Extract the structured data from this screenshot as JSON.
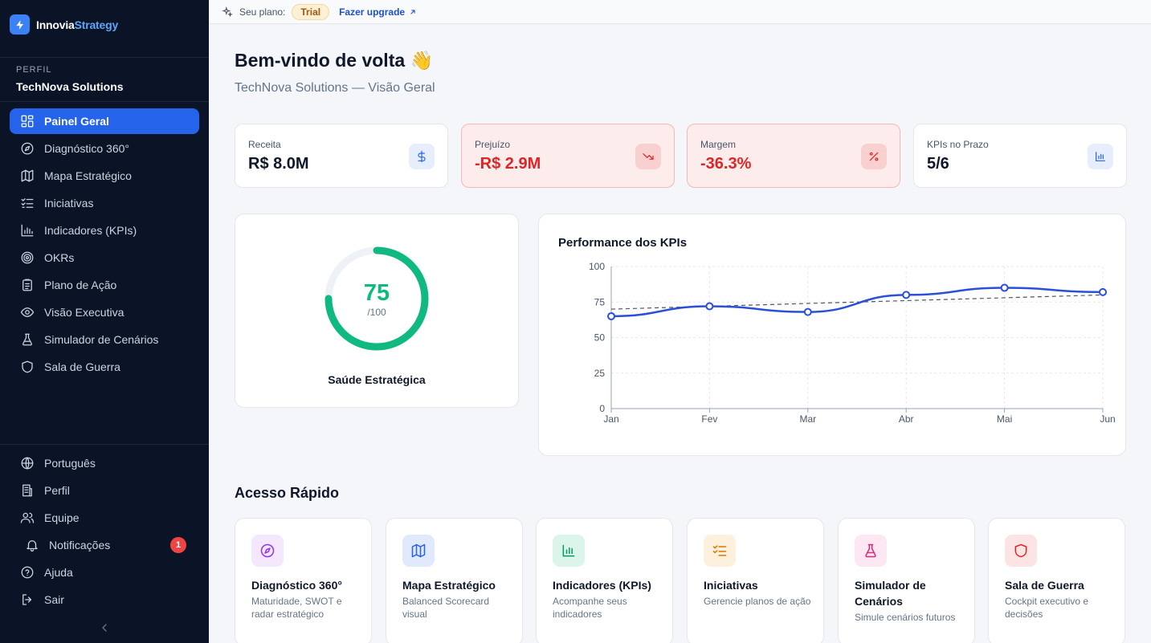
{
  "app": {
    "name_part1": "Innovia",
    "name_part2": "Strategy"
  },
  "profile": {
    "label": "PERFIL",
    "name": "TechNova Solutions"
  },
  "nav": [
    {
      "label": "Painel Geral",
      "icon": "dashboard-icon",
      "active": true
    },
    {
      "label": "Diagnóstico 360°",
      "icon": "compass-icon"
    },
    {
      "label": "Mapa Estratégico",
      "icon": "map-icon"
    },
    {
      "label": "Iniciativas",
      "icon": "checklist-icon"
    },
    {
      "label": "Indicadores (KPIs)",
      "icon": "bar-chart-icon"
    },
    {
      "label": "OKRs",
      "icon": "target-icon"
    },
    {
      "label": "Plano de Ação",
      "icon": "clipboard-icon"
    },
    {
      "label": "Visão Executiva",
      "icon": "eye-icon"
    },
    {
      "label": "Simulador de Cenários",
      "icon": "flask-icon"
    },
    {
      "label": "Sala de Guerra",
      "icon": "shield-icon"
    }
  ],
  "bottom_nav": [
    {
      "label": "Português",
      "icon": "globe-icon"
    },
    {
      "label": "Perfil",
      "icon": "building-icon"
    },
    {
      "label": "Equipe",
      "icon": "users-icon"
    },
    {
      "label": "Notificações",
      "icon": "bell-icon",
      "badge": "1"
    },
    {
      "label": "Ajuda",
      "icon": "help-icon"
    },
    {
      "label": "Sair",
      "icon": "logout-icon"
    }
  ],
  "topbar": {
    "plan_label": "Seu plano:",
    "plan": "Trial",
    "upgrade": "Fazer upgrade"
  },
  "header": {
    "title": "Bem-vindo de volta 👋",
    "subtitle": "TechNova Solutions — Visão Geral"
  },
  "kpis": [
    {
      "label": "Receita",
      "value": "R$ 8.0M",
      "icon": "dollar-icon",
      "negative": false
    },
    {
      "label": "Prejuízo",
      "value": "-R$ 2.9M",
      "icon": "trending-down-icon",
      "negative": true
    },
    {
      "label": "Margem",
      "value": "-36.3%",
      "icon": "percent-icon",
      "negative": true
    },
    {
      "label": "KPIs no Prazo",
      "value": "5/6",
      "icon": "bar-chart-icon",
      "negative": false
    }
  ],
  "health": {
    "score": "75",
    "max": "/100",
    "value": 75,
    "label": "Saúde Estratégica"
  },
  "chart_data": {
    "type": "line",
    "title": "Performance dos KPIs",
    "categories": [
      "Jan",
      "Fev",
      "Mar",
      "Abr",
      "Mai",
      "Jun"
    ],
    "series": [
      {
        "values": [
          65,
          72,
          68,
          80,
          85,
          82
        ],
        "style": "solid"
      },
      {
        "values": [
          70,
          72,
          74,
          76,
          78,
          80
        ],
        "style": "dashed"
      }
    ],
    "yticks": [
      "0",
      "25",
      "50",
      "75",
      "100"
    ],
    "ylim": [
      0,
      100
    ],
    "grid": true,
    "colors": {
      "main": "#2b4fd8",
      "target": "#4b5563"
    }
  },
  "quick_access": {
    "title": "Acesso Rápido",
    "items": [
      {
        "title": "Diagnóstico 360°",
        "desc": "Maturidade, SWOT e radar estratégico",
        "icon": "compass-icon",
        "bg": "#f3e8ff",
        "fg": "#9333ea"
      },
      {
        "title": "Mapa Estratégico",
        "desc": "Balanced Scorecard visual",
        "icon": "map-icon",
        "bg": "#e0e9fd",
        "fg": "#2563eb"
      },
      {
        "title": "Indicadores (KPIs)",
        "desc": "Acompanhe seus indicadores",
        "icon": "bar-chart-icon",
        "bg": "#dcf5ea",
        "fg": "#059669"
      },
      {
        "title": "Iniciativas",
        "desc": "Gerencie planos de ação",
        "icon": "checklist-icon",
        "bg": "#fdf0dc",
        "fg": "#d97706"
      },
      {
        "title": "Simulador de Cenários",
        "desc": "Simule cenários futuros",
        "icon": "flask-icon",
        "bg": "#fce7f3",
        "fg": "#db2777"
      },
      {
        "title": "Sala de Guerra",
        "desc": "Cockpit executivo e decisões",
        "icon": "shield-icon",
        "bg": "#fde4e4",
        "fg": "#dc2626"
      }
    ]
  }
}
